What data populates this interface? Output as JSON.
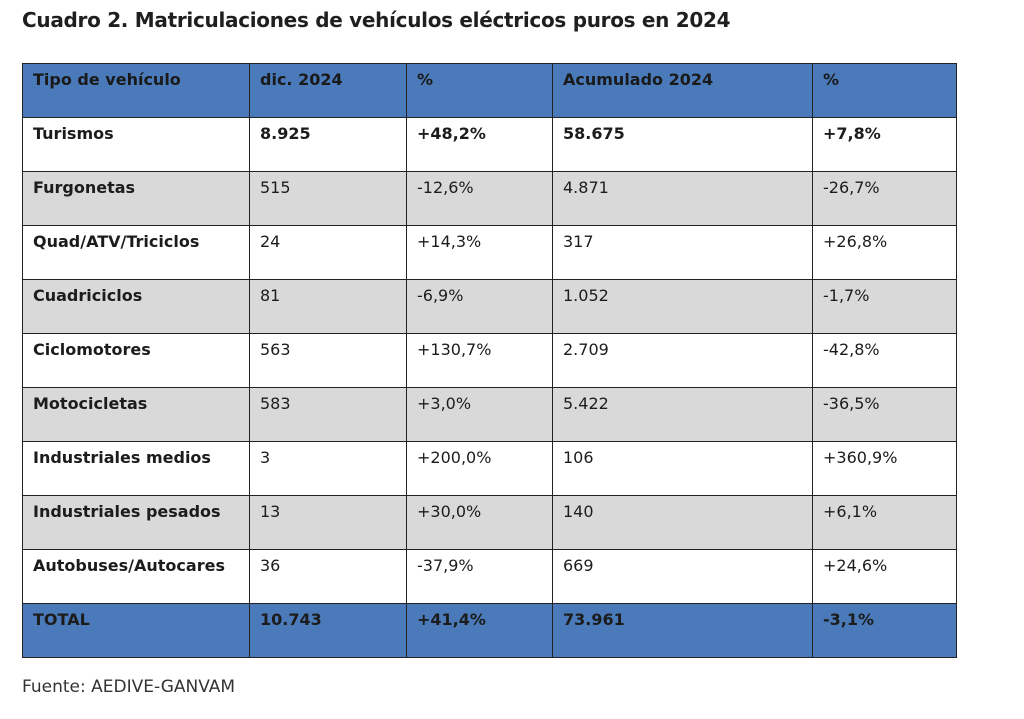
{
  "title": "Cuadro 2. Matriculaciones de vehículos eléctricos puros en 2024",
  "table": {
    "headers": [
      "Tipo de vehículo",
      "dic. 2024",
      "%",
      "Acumulado 2024",
      "%"
    ],
    "rows": [
      [
        "Turismos",
        "8.925",
        "+48,2%",
        "58.675",
        "+7,8%"
      ],
      [
        "Furgonetas",
        "515",
        "-12,6%",
        "4.871",
        "-26,7%"
      ],
      [
        "Quad/ATV/Triciclos",
        "24",
        "+14,3%",
        "317",
        "+26,8%"
      ],
      [
        "Cuadriciclos",
        "81",
        "-6,9%",
        "1.052",
        "-1,7%"
      ],
      [
        "Ciclomotores",
        "563",
        "+130,7%",
        "2.709",
        "-42,8%"
      ],
      [
        "Motocicletas",
        "583",
        "+3,0%",
        "5.422",
        "-36,5%"
      ],
      [
        "Industriales medios",
        "3",
        "+200,0%",
        "106",
        "+360,9%"
      ],
      [
        "Industriales pesados",
        "13",
        "+30,0%",
        "140",
        "+6,1%"
      ],
      [
        "Autobuses/Autocares",
        "36",
        "-37,9%",
        "669",
        "+24,6%"
      ]
    ],
    "total": [
      "TOTAL",
      "10.743",
      "+41,4%",
      "73.961",
      "-3,1%"
    ]
  },
  "source": "Fuente: AEDIVE-GANVAM",
  "colors": {
    "header_bg": "#4a7ab9",
    "stripe_bg": "#d9d9d9",
    "border": "#222222"
  }
}
